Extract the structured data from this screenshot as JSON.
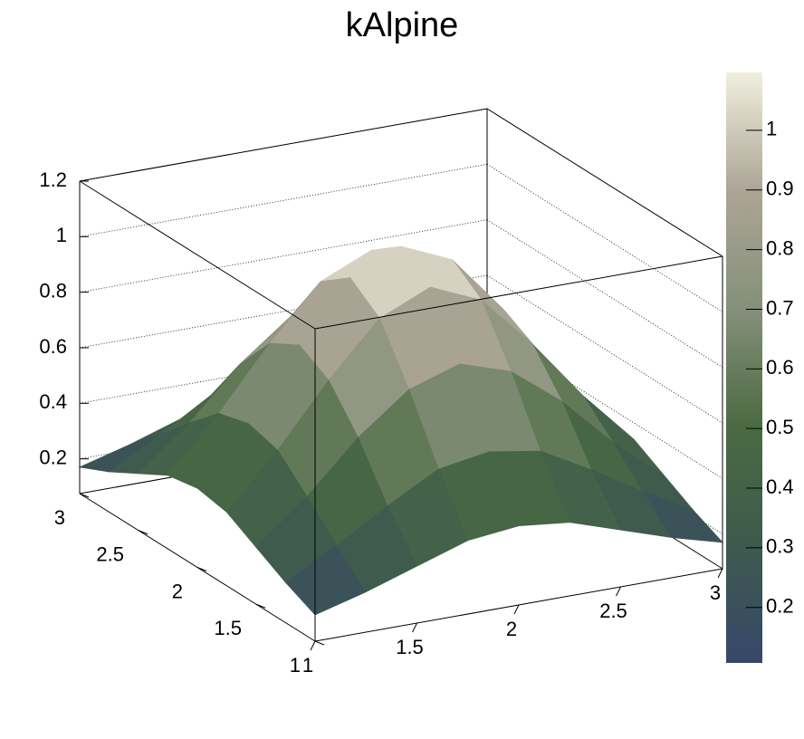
{
  "chart_data": {
    "type": "surface",
    "title": "kAlpine",
    "x": [
      1,
      1.25,
      1.5,
      1.75,
      2,
      2.25,
      2.5,
      2.75,
      3
    ],
    "y": [
      1,
      1.25,
      1.5,
      1.75,
      2,
      2.25,
      2.5,
      2.75,
      3
    ],
    "z": [
      [
        0.17,
        0.22,
        0.28,
        0.34,
        0.36,
        0.34,
        0.28,
        0.22,
        0.17
      ],
      [
        0.22,
        0.32,
        0.43,
        0.53,
        0.56,
        0.53,
        0.43,
        0.32,
        0.22
      ],
      [
        0.28,
        0.43,
        0.61,
        0.75,
        0.81,
        0.75,
        0.61,
        0.43,
        0.28
      ],
      [
        0.34,
        0.53,
        0.75,
        0.94,
        1.02,
        0.94,
        0.75,
        0.53,
        0.34
      ],
      [
        0.36,
        0.56,
        0.81,
        1.02,
        1.1,
        1.02,
        0.81,
        0.56,
        0.36
      ],
      [
        0.34,
        0.53,
        0.75,
        0.94,
        1.02,
        0.94,
        0.75,
        0.53,
        0.34
      ],
      [
        0.28,
        0.43,
        0.61,
        0.75,
        0.81,
        0.75,
        0.61,
        0.43,
        0.28
      ],
      [
        0.22,
        0.32,
        0.43,
        0.53,
        0.56,
        0.53,
        0.43,
        0.32,
        0.22
      ],
      [
        0.17,
        0.22,
        0.28,
        0.34,
        0.36,
        0.34,
        0.28,
        0.22,
        0.17
      ]
    ],
    "xlim": [
      1,
      3
    ],
    "xticks": [
      1,
      1.5,
      2,
      2.5,
      3
    ],
    "ylim": [
      1,
      3
    ],
    "yticks": [
      1,
      1.5,
      2,
      2.5,
      3
    ],
    "zlim": [
      0.075,
      1.2
    ],
    "zticks": [
      0.2,
      0.4,
      0.6,
      0.8,
      1,
      1.2
    ],
    "colorbar_lim": [
      0.107,
      1.097
    ],
    "colorbar_ticks": [
      0.2,
      0.3,
      0.4,
      0.5,
      0.6,
      0.7,
      0.8,
      0.9,
      1
    ],
    "colors": [
      "#37476a",
      "#3e5a4e",
      "#4b6a42",
      "#85907a",
      "#aca595",
      "#f0efde"
    ],
    "grid": true
  }
}
